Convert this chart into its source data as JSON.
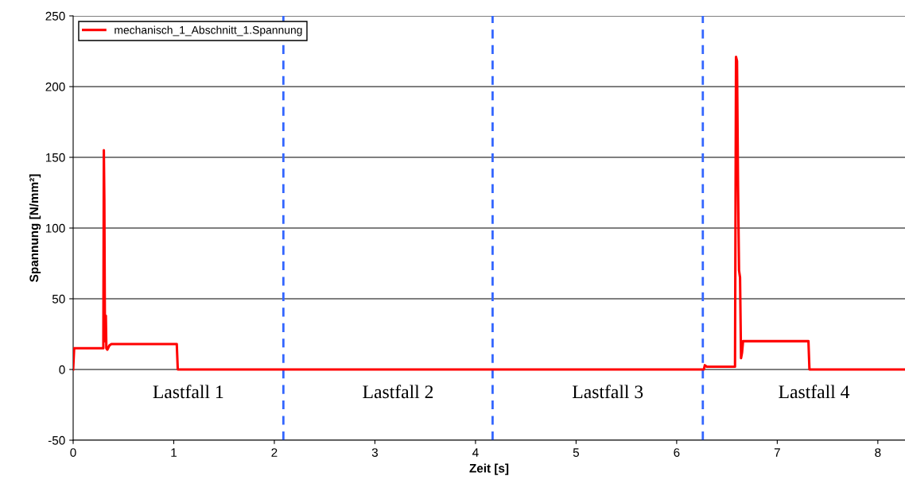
{
  "chart_data": {
    "type": "line",
    "xlabel": "Zeit [s]",
    "ylabel": "Spannung [N/mm²]",
    "xlim": [
      0,
      8.27
    ],
    "xticks": [
      0,
      1,
      2,
      3,
      4,
      5,
      6,
      7,
      8
    ],
    "ylim": [
      -50,
      250
    ],
    "yticks": [
      -50,
      0,
      50,
      100,
      150,
      200,
      250
    ],
    "grid": "y",
    "legend": "top left",
    "marker": "none",
    "line_style": "solid",
    "series": [
      {
        "name": "mechanisch_1_Abschnitt_1.Spannung",
        "color": "#ff0000",
        "x": [
          0,
          0.01,
          0.3,
          0.305,
          0.31,
          0.315,
          0.32,
          0.325,
          0.33,
          0.34,
          0.36,
          0.38,
          0.4,
          0.45,
          1.03,
          1.04,
          2.0,
          4.0,
          6.0,
          6.27,
          6.28,
          6.3,
          6.58,
          6.59,
          6.6,
          6.61,
          6.62,
          6.63,
          6.64,
          6.65,
          6.66,
          6.67,
          7.31,
          7.32,
          8.27
        ],
        "values": [
          0,
          15,
          15,
          155,
          120,
          40,
          20,
          38,
          15,
          14,
          17,
          18,
          18,
          18,
          18,
          0,
          0,
          0,
          0,
          0,
          3,
          2,
          2,
          221,
          218,
          130,
          70,
          65,
          8,
          12,
          20,
          20,
          20,
          0,
          0
        ]
      }
    ],
    "ref_lines": [
      {
        "axis": "x",
        "value": 2.09,
        "color": "#3366ff",
        "line_style": "dashed"
      },
      {
        "axis": "x",
        "value": 4.17,
        "color": "#3366ff",
        "line_style": "dashed"
      },
      {
        "axis": "x",
        "value": 6.26,
        "color": "#3366ff",
        "line_style": "dashed"
      }
    ],
    "annotations": [
      "Lastfall 1",
      "Lastfall 2",
      "Lastfall 3",
      "Lastfall 4"
    ]
  }
}
